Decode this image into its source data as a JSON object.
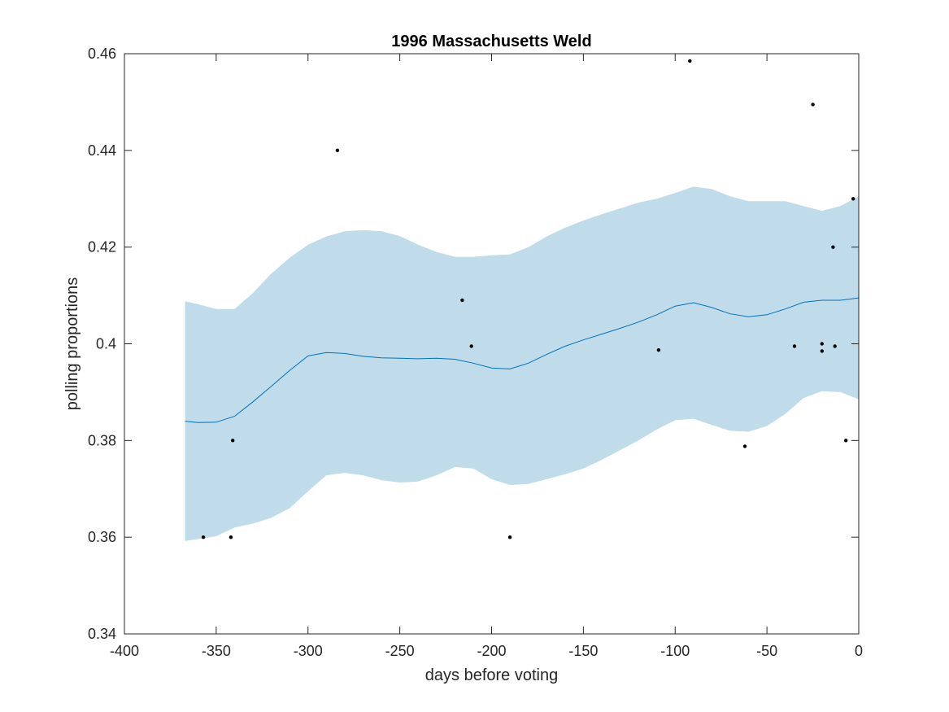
{
  "chart_data": {
    "type": "scatter",
    "title": "1996 Massachusetts Weld",
    "xlabel": "days before voting",
    "ylabel": "polling proportions",
    "xlim": [
      -400,
      0
    ],
    "ylim": [
      0.34,
      0.46
    ],
    "x_ticks": [
      -400,
      -350,
      -300,
      -250,
      -200,
      -150,
      -100,
      -50,
      0
    ],
    "x_tick_labels": [
      "-400",
      "-350",
      "-300",
      "-250",
      "-200",
      "-150",
      "-100",
      "-50",
      "0"
    ],
    "y_ticks": [
      0.34,
      0.36,
      0.38,
      0.4,
      0.42,
      0.44,
      0.46
    ],
    "y_tick_labels": [
      "0.34",
      "0.36",
      "0.38",
      "0.4",
      "0.42",
      "0.44",
      "0.46"
    ],
    "grid": false,
    "colors": {
      "band": "#c0dcea",
      "trend": "#0072bd",
      "points": "#000000",
      "axes": "#262626"
    },
    "points": [
      {
        "x": -357,
        "y": 0.36
      },
      {
        "x": -342,
        "y": 0.36
      },
      {
        "x": -341,
        "y": 0.38
      },
      {
        "x": -284,
        "y": 0.44
      },
      {
        "x": -216,
        "y": 0.409
      },
      {
        "x": -211,
        "y": 0.3995
      },
      {
        "x": -190,
        "y": 0.36
      },
      {
        "x": -109,
        "y": 0.3987
      },
      {
        "x": -92,
        "y": 0.4585
      },
      {
        "x": -62,
        "y": 0.3788
      },
      {
        "x": -35,
        "y": 0.3995
      },
      {
        "x": -25,
        "y": 0.4495
      },
      {
        "x": -20,
        "y": 0.4
      },
      {
        "x": -20,
        "y": 0.3985
      },
      {
        "x": -14,
        "y": 0.42
      },
      {
        "x": -13,
        "y": 0.3995
      },
      {
        "x": -7,
        "y": 0.38
      },
      {
        "x": -3,
        "y": 0.43
      }
    ],
    "trend": {
      "x": [
        -367,
        -360,
        -350,
        -340,
        -330,
        -320,
        -310,
        -300,
        -290,
        -280,
        -270,
        -260,
        -250,
        -240,
        -230,
        -220,
        -210,
        -200,
        -190,
        -180,
        -170,
        -160,
        -150,
        -140,
        -130,
        -120,
        -110,
        -100,
        -90,
        -80,
        -70,
        -60,
        -50,
        -40,
        -30,
        -20,
        -10,
        0
      ],
      "y": [
        0.384,
        0.3837,
        0.3838,
        0.385,
        0.388,
        0.3912,
        0.3945,
        0.3975,
        0.3982,
        0.398,
        0.3974,
        0.3971,
        0.397,
        0.3969,
        0.397,
        0.3968,
        0.396,
        0.395,
        0.3948,
        0.396,
        0.3978,
        0.3995,
        0.4008,
        0.402,
        0.4032,
        0.4045,
        0.406,
        0.4078,
        0.4085,
        0.4075,
        0.4062,
        0.4056,
        0.406,
        0.4072,
        0.4086,
        0.409,
        0.409,
        0.4095
      ]
    },
    "band": {
      "x": [
        -367,
        -360,
        -350,
        -340,
        -330,
        -320,
        -310,
        -300,
        -290,
        -280,
        -270,
        -260,
        -250,
        -240,
        -230,
        -220,
        -210,
        -200,
        -190,
        -180,
        -170,
        -160,
        -150,
        -140,
        -130,
        -120,
        -110,
        -100,
        -90,
        -80,
        -70,
        -60,
        -50,
        -40,
        -30,
        -20,
        -10,
        0
      ],
      "upper": [
        0.4088,
        0.4082,
        0.4072,
        0.4072,
        0.4105,
        0.4145,
        0.4178,
        0.4205,
        0.4222,
        0.4233,
        0.4235,
        0.4233,
        0.4223,
        0.4205,
        0.419,
        0.418,
        0.418,
        0.4183,
        0.4185,
        0.42,
        0.4222,
        0.424,
        0.4255,
        0.4268,
        0.428,
        0.4292,
        0.43,
        0.4312,
        0.4325,
        0.432,
        0.4305,
        0.4295,
        0.4295,
        0.4295,
        0.4285,
        0.4275,
        0.4285,
        0.4305
      ],
      "lower": [
        0.3592,
        0.3596,
        0.3602,
        0.362,
        0.3628,
        0.364,
        0.366,
        0.3695,
        0.3728,
        0.3733,
        0.3728,
        0.3718,
        0.3713,
        0.3715,
        0.3728,
        0.3745,
        0.3742,
        0.372,
        0.3708,
        0.371,
        0.372,
        0.373,
        0.3742,
        0.376,
        0.378,
        0.38,
        0.3823,
        0.3842,
        0.3845,
        0.3832,
        0.382,
        0.3818,
        0.383,
        0.3855,
        0.3888,
        0.3902,
        0.39,
        0.3885
      ]
    }
  }
}
